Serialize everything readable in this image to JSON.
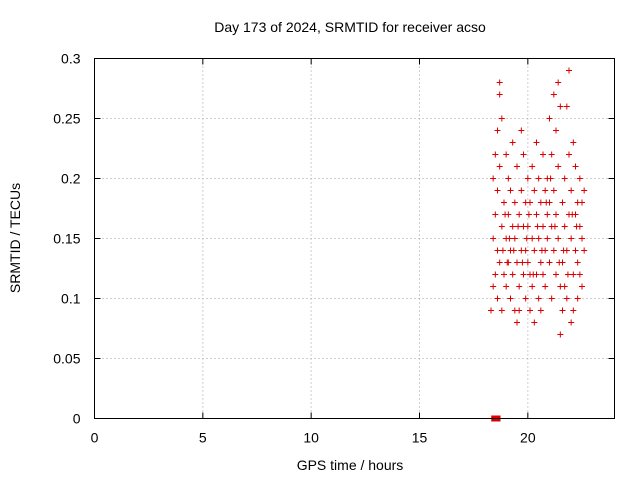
{
  "chart_data": {
    "type": "scatter",
    "title": "Day 173 of 2024, SRMTID for receiver acso",
    "xlabel": "GPS time / hours",
    "ylabel": "SRMTID / TECUs",
    "xlim": [
      0,
      24
    ],
    "ylim": [
      0,
      0.3
    ],
    "xticks": [
      0,
      5,
      10,
      15,
      20
    ],
    "yticks": [
      0,
      0.05,
      0.1,
      0.15,
      0.2,
      0.25,
      0.3
    ],
    "xtick_labels": [
      "0",
      "5",
      "10",
      "15",
      "20"
    ],
    "ytick_labels": [
      "0",
      "0.05",
      "0.1",
      "0.15",
      "0.2",
      "0.25",
      "0.3"
    ],
    "grid": true,
    "marker_color": "#dd0000",
    "zero_markers": [
      {
        "x": 18.45,
        "y": 0
      },
      {
        "x": 18.6,
        "y": 0
      }
    ],
    "points": [
      [
        18.3,
        0.09
      ],
      [
        18.4,
        0.11
      ],
      [
        18.4,
        0.15
      ],
      [
        18.4,
        0.2
      ],
      [
        18.5,
        0.12
      ],
      [
        18.5,
        0.17
      ],
      [
        18.5,
        0.22
      ],
      [
        18.6,
        0.1
      ],
      [
        18.6,
        0.14
      ],
      [
        18.6,
        0.19
      ],
      [
        18.6,
        0.24
      ],
      [
        18.7,
        0.28
      ],
      [
        18.7,
        0.27
      ],
      [
        18.7,
        0.21
      ],
      [
        18.7,
        0.13
      ],
      [
        18.8,
        0.09
      ],
      [
        18.8,
        0.25
      ],
      [
        18.8,
        0.16
      ],
      [
        18.9,
        0.18
      ],
      [
        18.9,
        0.12
      ],
      [
        19.0,
        0.22
      ],
      [
        19.0,
        0.15
      ],
      [
        19.0,
        0.11
      ],
      [
        19.1,
        0.2
      ],
      [
        19.1,
        0.17
      ],
      [
        19.1,
        0.13
      ],
      [
        19.2,
        0.1
      ],
      [
        19.2,
        0.19
      ],
      [
        19.2,
        0.14
      ],
      [
        19.3,
        0.23
      ],
      [
        19.3,
        0.16
      ],
      [
        19.3,
        0.12
      ],
      [
        19.4,
        0.09
      ],
      [
        19.4,
        0.18
      ],
      [
        19.4,
        0.15
      ],
      [
        19.5,
        0.08
      ],
      [
        19.5,
        0.21
      ],
      [
        19.5,
        0.13
      ],
      [
        19.6,
        0.11
      ],
      [
        19.6,
        0.17
      ],
      [
        19.6,
        0.09
      ],
      [
        19.7,
        0.24
      ],
      [
        19.7,
        0.14
      ],
      [
        19.7,
        0.19
      ],
      [
        19.8,
        0.12
      ],
      [
        19.8,
        0.16
      ],
      [
        19.8,
        0.22
      ],
      [
        19.9,
        0.1
      ],
      [
        19.9,
        0.18
      ],
      [
        19.9,
        0.14
      ],
      [
        20.0,
        0.13
      ],
      [
        20.0,
        0.2
      ],
      [
        20.0,
        0.16
      ],
      [
        20.1,
        0.09
      ],
      [
        20.1,
        0.12
      ],
      [
        20.1,
        0.18
      ],
      [
        20.2,
        0.15
      ],
      [
        20.2,
        0.21
      ],
      [
        20.2,
        0.11
      ],
      [
        20.3,
        0.08
      ],
      [
        20.3,
        0.14
      ],
      [
        20.3,
        0.19
      ],
      [
        20.4,
        0.12
      ],
      [
        20.4,
        0.17
      ],
      [
        20.4,
        0.23
      ],
      [
        20.5,
        0.1
      ],
      [
        20.5,
        0.15
      ],
      [
        20.5,
        0.2
      ],
      [
        20.6,
        0.13
      ],
      [
        20.6,
        0.18
      ],
      [
        20.6,
        0.09
      ],
      [
        20.7,
        0.16
      ],
      [
        20.7,
        0.22
      ],
      [
        20.7,
        0.12
      ],
      [
        20.8,
        0.19
      ],
      [
        20.8,
        0.14
      ],
      [
        20.8,
        0.11
      ],
      [
        20.9,
        0.17
      ],
      [
        20.9,
        0.2
      ],
      [
        20.9,
        0.15
      ],
      [
        21.0,
        0.25
      ],
      [
        21.0,
        0.13
      ],
      [
        21.0,
        0.18
      ],
      [
        21.1,
        0.22
      ],
      [
        21.1,
        0.16
      ],
      [
        21.1,
        0.1
      ],
      [
        21.2,
        0.27
      ],
      [
        21.2,
        0.19
      ],
      [
        21.2,
        0.14
      ],
      [
        21.3,
        0.24
      ],
      [
        21.3,
        0.17
      ],
      [
        21.3,
        0.12
      ],
      [
        21.4,
        0.28
      ],
      [
        21.4,
        0.21
      ],
      [
        21.4,
        0.15
      ],
      [
        21.5,
        0.26
      ],
      [
        21.5,
        0.11
      ],
      [
        21.5,
        0.07
      ],
      [
        21.6,
        0.18
      ],
      [
        21.6,
        0.13
      ],
      [
        21.6,
        0.09
      ],
      [
        21.7,
        0.2
      ],
      [
        21.7,
        0.16
      ],
      [
        21.7,
        0.11
      ],
      [
        21.8,
        0.26
      ],
      [
        21.8,
        0.14
      ],
      [
        21.8,
        0.1
      ],
      [
        21.9,
        0.29
      ],
      [
        21.9,
        0.22
      ],
      [
        21.9,
        0.17
      ],
      [
        22.0,
        0.19
      ],
      [
        22.0,
        0.15
      ],
      [
        22.0,
        0.08
      ],
      [
        22.1,
        0.23
      ],
      [
        22.1,
        0.12
      ],
      [
        22.1,
        0.09
      ],
      [
        22.2,
        0.21
      ],
      [
        22.2,
        0.17
      ],
      [
        22.2,
        0.14
      ],
      [
        22.3,
        0.18
      ],
      [
        22.3,
        0.13
      ],
      [
        22.3,
        0.1
      ],
      [
        22.4,
        0.16
      ],
      [
        22.4,
        0.2
      ],
      [
        22.4,
        0.12
      ],
      [
        22.5,
        0.15
      ],
      [
        22.5,
        0.11
      ],
      [
        22.5,
        0.18
      ],
      [
        22.6,
        0.14
      ],
      [
        22.6,
        0.19
      ],
      [
        20.05,
        0.17
      ],
      [
        20.25,
        0.12
      ],
      [
        20.45,
        0.16
      ],
      [
        20.65,
        0.14
      ],
      [
        20.85,
        0.18
      ],
      [
        21.05,
        0.2
      ],
      [
        21.25,
        0.16
      ],
      [
        21.45,
        0.13
      ],
      [
        21.65,
        0.14
      ],
      [
        21.85,
        0.12
      ],
      [
        22.05,
        0.17
      ],
      [
        22.25,
        0.16
      ],
      [
        19.15,
        0.15
      ],
      [
        19.35,
        0.14
      ],
      [
        19.55,
        0.16
      ],
      [
        19.75,
        0.13
      ],
      [
        19.95,
        0.15
      ],
      [
        18.85,
        0.14
      ],
      [
        18.95,
        0.17
      ],
      [
        19.05,
        0.13
      ]
    ]
  }
}
